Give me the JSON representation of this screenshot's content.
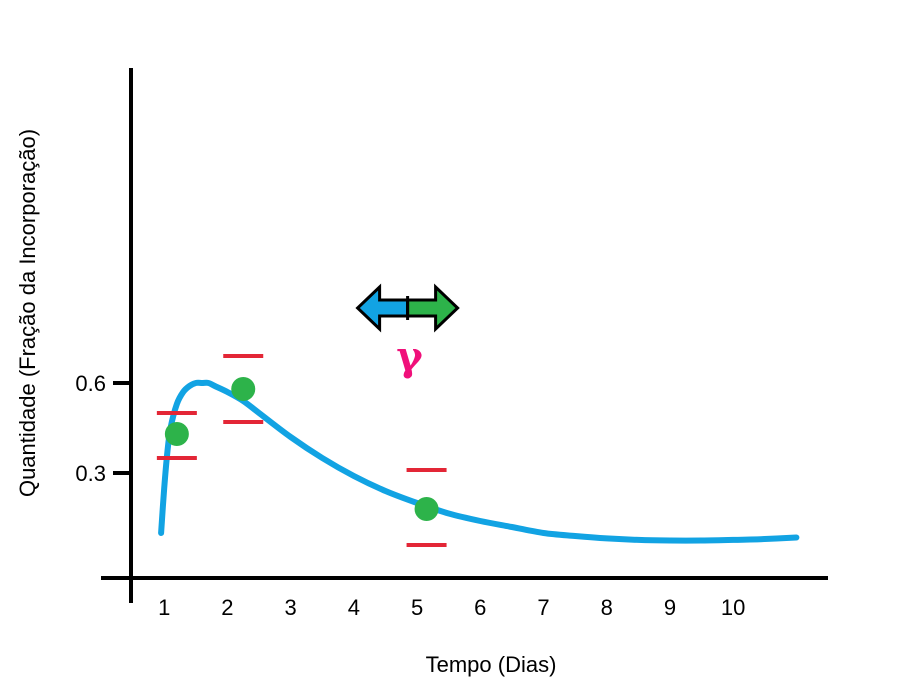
{
  "chart_data": {
    "type": "scatter",
    "xlabel": "Tempo (Dias)",
    "ylabel": "Quantidade (Fração da Incorporação)",
    "xlim": [
      0.0,
      11.5
    ],
    "ylim": [
      -0.05,
      1.65
    ],
    "x_ticks": [
      "1",
      "2",
      "3",
      "4",
      "5",
      "6",
      "7",
      "8",
      "9",
      "10"
    ],
    "y_ticks": [
      "0.3",
      "0.6"
    ],
    "points": [
      {
        "x": 1.2,
        "y": 0.43,
        "err_low": 0.35,
        "err_high": 0.5
      },
      {
        "x": 2.25,
        "y": 0.58,
        "err_low": 0.47,
        "err_high": 0.69
      },
      {
        "x": 5.15,
        "y": 0.18,
        "err_low": 0.06,
        "err_high": 0.31
      }
    ],
    "fit_curve": {
      "x": [
        0.95,
        1.0,
        1.05,
        1.1,
        1.2,
        1.3,
        1.4,
        1.5,
        1.6,
        1.7,
        1.8,
        2.0,
        2.25,
        2.5,
        3.0,
        3.5,
        4.0,
        4.5,
        5.0,
        5.5,
        6.0,
        6.5,
        7.0,
        7.5,
        8.0,
        8.5,
        9.0,
        9.5,
        10.0,
        10.5,
        11.0
      ],
      "y": [
        0.1,
        0.25,
        0.37,
        0.45,
        0.53,
        0.57,
        0.59,
        0.6,
        0.6,
        0.6,
        0.59,
        0.57,
        0.54,
        0.5,
        0.42,
        0.35,
        0.29,
        0.24,
        0.2,
        0.165,
        0.14,
        0.12,
        0.1,
        0.09,
        0.082,
        0.077,
        0.075,
        0.075,
        0.077,
        0.08,
        0.085
      ]
    },
    "annotation": {
      "symbol": "γ",
      "x": 4.85,
      "y": 0.85
    },
    "colors": {
      "curve": "#12a3e3",
      "points": "#2db34a",
      "error_bars": "#e32636",
      "arrow_left": "#12a3e3",
      "arrow_right": "#2db34a",
      "gamma": "#f0107a",
      "axes": "#000000"
    }
  }
}
